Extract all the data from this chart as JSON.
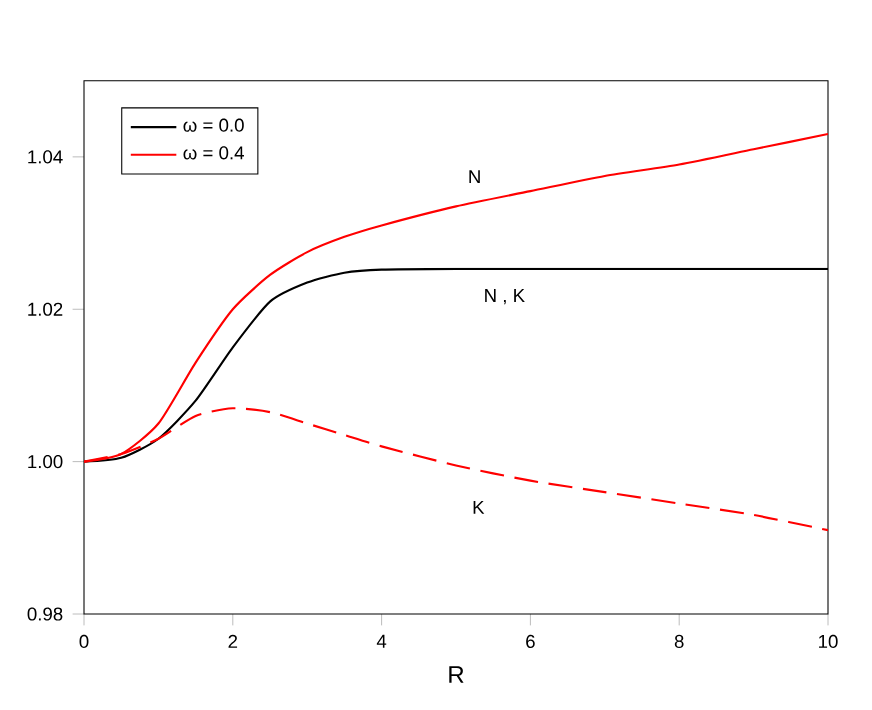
{
  "chart_data": {
    "type": "line",
    "xlabel": "R",
    "xlim": [
      0,
      10
    ],
    "ylim": [
      0.98,
      1.05
    ],
    "xticks": [
      0,
      2,
      4,
      6,
      8,
      10
    ],
    "yticks": [
      0.98,
      {
        "value": 1.0,
        "label": "1.00"
      },
      1.02,
      1.04
    ],
    "x": [
      0,
      0.5,
      1,
      1.5,
      2,
      2.5,
      3,
      3.5,
      4,
      5,
      6,
      7,
      8,
      9,
      10
    ],
    "series": [
      {
        "name": "ω = 0.0",
        "color": "#000000",
        "line_style": "solid",
        "values": [
          1.0,
          1.0005,
          1.003,
          1.008,
          1.015,
          1.021,
          1.0235,
          1.0248,
          1.0252,
          1.0253,
          1.0253,
          1.0253,
          1.0253,
          1.0253,
          1.0253
        ]
      },
      {
        "name": "ω = 0.4",
        "color": "#ff0000",
        "line_style": "solid",
        "values": [
          1.0,
          1.001,
          1.005,
          1.013,
          1.02,
          1.0245,
          1.0275,
          1.0295,
          1.031,
          1.0335,
          1.0355,
          1.0375,
          1.039,
          1.041,
          1.043
        ]
      },
      {
        "color": "#ff0000",
        "line_style": "dashed",
        "values": [
          1.0,
          1.001,
          1.003,
          1.006,
          1.007,
          1.0065,
          1.005,
          1.0035,
          1.002,
          0.9995,
          0.9975,
          0.996,
          0.9945,
          0.993,
          0.991
        ]
      }
    ],
    "annotations": [
      "N",
      "N , K",
      "K"
    ],
    "legend": "top left",
    "grid": false,
    "marker": "none"
  }
}
